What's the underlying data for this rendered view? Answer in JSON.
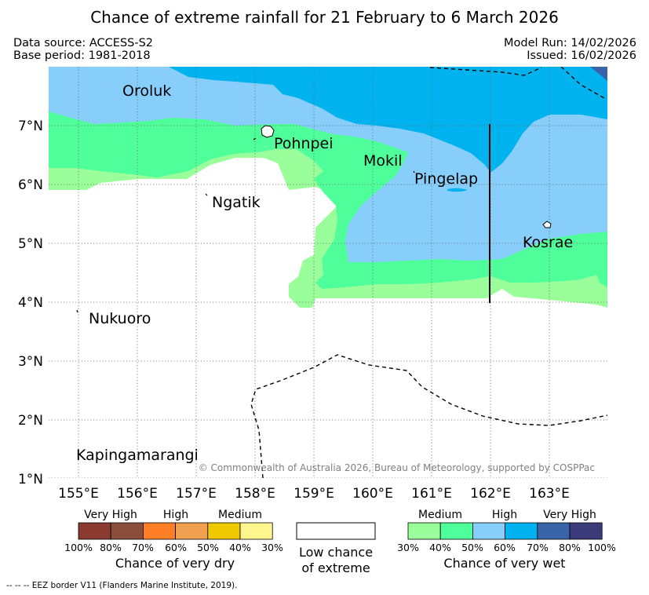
{
  "title": "Chance of extreme rainfall for 21 February to 6 March 2026",
  "header": {
    "data_source": "Data source: ACCESS-S2",
    "base_period": "Base period: 1981-2018",
    "model_run": "Model Run: 14/02/2026",
    "issued": "Issued: 16/02/2026"
  },
  "map": {
    "lon_labels": [
      "155°E",
      "156°E",
      "157°E",
      "158°E",
      "159°E",
      "160°E",
      "161°E",
      "162°E",
      "163°E"
    ],
    "lat_labels": [
      "7°N",
      "6°N",
      "5°N",
      "4°N",
      "3°N",
      "2°N",
      "1°N"
    ],
    "place_labels": {
      "oroluk": "Oroluk",
      "pohnpei": "Pohnpei",
      "mokil": "Mokil",
      "pingelap": "Pingelap",
      "ngatik": "Ngatik",
      "kosrae": "Kosrae",
      "nukuoro": "Nukuoro",
      "kapingamarangi": "Kapingamarangi"
    },
    "copyright": "© Commonwealth of Australia 2026, Bureau of Meteorology, supported by COSPPac"
  },
  "legend": {
    "dry": {
      "categories": [
        "Very High",
        "High",
        "Medium"
      ],
      "ticks": [
        "100%",
        "80%",
        "70%",
        "60%",
        "50%",
        "40%",
        "30%"
      ],
      "colors": [
        "#8b3a30",
        "#8a4f3c",
        "#ff7f27",
        "#f0a050",
        "#eec900",
        "#fff68f"
      ],
      "caption": "Chance of very dry"
    },
    "low": {
      "line1": "Low chance",
      "line2": "of extreme"
    },
    "wet": {
      "categories": [
        "Medium",
        "High",
        "Very High"
      ],
      "ticks": [
        "30%",
        "40%",
        "50%",
        "60%",
        "70%",
        "80%",
        "100%"
      ],
      "colors": [
        "#9aff9a",
        "#4eff9a",
        "#87cefa",
        "#00b2ee",
        "#3a64a8",
        "#3b3b7a"
      ],
      "caption": "Chance of very wet"
    }
  },
  "eez_note": "--  --  -- EEZ border V11 (Flanders Marine Institute, 2019)."
}
